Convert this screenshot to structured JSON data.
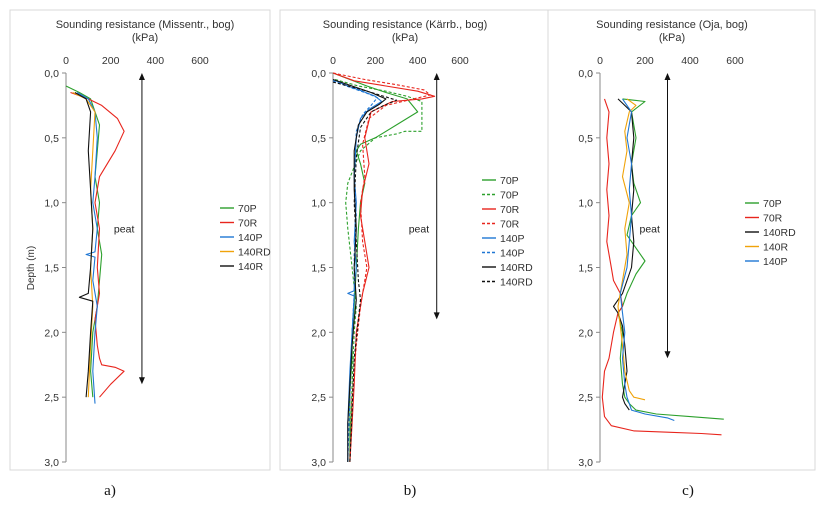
{
  "chart_data": [
    {
      "type": "line",
      "orientation": "vertical-profile",
      "panel_label": "a)",
      "title": "Sounding resistance (Missentr., bog)",
      "xunit": "(kPa)",
      "ylabel": "Depth (m)",
      "xlim": [
        0,
        600
      ],
      "ylim": [
        0,
        3.0
      ],
      "xticks": [
        "0",
        "200",
        "400",
        "600"
      ],
      "yticks": [
        "0,0",
        "0,5",
        "1,0",
        "1,5",
        "2,0",
        "2,5",
        "3,0"
      ],
      "annotation": {
        "text": "peat",
        "from_depth": 0.0,
        "to_depth": 2.4,
        "at_x": 340
      },
      "series": [
        {
          "name": "70P",
          "color": "#2ca02c",
          "dash": false,
          "x": [
            0,
            60,
            110,
            150,
            140,
            130,
            150,
            140,
            160,
            150,
            140,
            120,
            110,
            120
          ],
          "y": [
            0.1,
            0.15,
            0.2,
            0.4,
            0.6,
            0.8,
            1.0,
            1.2,
            1.4,
            1.6,
            1.8,
            2.0,
            2.3,
            2.5
          ]
        },
        {
          "name": "70R",
          "color": "#e8251d",
          "dash": false,
          "x": [
            20,
            100,
            160,
            230,
            260,
            220,
            150,
            130,
            150,
            140,
            150,
            130,
            140,
            150,
            160,
            220,
            260,
            200,
            150
          ],
          "y": [
            0.15,
            0.2,
            0.25,
            0.35,
            0.45,
            0.6,
            0.8,
            1.0,
            1.2,
            1.5,
            1.7,
            1.9,
            2.1,
            2.2,
            2.25,
            2.27,
            2.3,
            2.4,
            2.5
          ]
        },
        {
          "name": "140P",
          "color": "#1f77d4",
          "dash": false,
          "x": [
            50,
            100,
            130,
            140,
            130,
            120,
            140,
            130,
            90,
            130,
            120,
            140,
            130,
            120,
            130
          ],
          "y": [
            0.15,
            0.2,
            0.3,
            0.5,
            0.8,
            1.0,
            1.2,
            1.38,
            1.4,
            1.42,
            1.6,
            1.8,
            2.0,
            2.3,
            2.55
          ]
        },
        {
          "name": "140RD",
          "color": "#f0a30a",
          "dash": false,
          "x": [
            30,
            90,
            130,
            120,
            110,
            120,
            110,
            120,
            110,
            100
          ],
          "y": [
            0.15,
            0.2,
            0.3,
            0.6,
            0.9,
            1.2,
            1.5,
            1.8,
            2.1,
            2.5
          ]
        },
        {
          "name": "140R",
          "color": "#111111",
          "dash": false,
          "x": [
            40,
            90,
            110,
            100,
            110,
            120,
            110,
            100,
            60,
            120,
            110,
            100,
            90
          ],
          "y": [
            0.15,
            0.2,
            0.3,
            0.6,
            0.9,
            1.2,
            1.5,
            1.7,
            1.73,
            1.76,
            2.0,
            2.3,
            2.5
          ]
        }
      ]
    },
    {
      "type": "line",
      "orientation": "vertical-profile",
      "panel_label": "b)",
      "title": "Sounding resistance (Kärrb., bog)",
      "xunit": "(kPa)",
      "ylabel": "",
      "xlim": [
        0,
        600
      ],
      "ylim": [
        0,
        3.0
      ],
      "xticks": [
        "0",
        "200",
        "400",
        "600"
      ],
      "yticks": [
        "0,0",
        "0,5",
        "1,0",
        "1,5",
        "2,0",
        "2,5",
        "3,0"
      ],
      "annotation": {
        "text": "peat",
        "from_depth": 0.0,
        "to_depth": 1.9,
        "at_x": 490
      },
      "series": [
        {
          "name": "70P",
          "color": "#2ca02c",
          "dash": false,
          "x": [
            0,
            80,
            160,
            250,
            350,
            400,
            300,
            200,
            130,
            110,
            130,
            150,
            130,
            120,
            110,
            100,
            90,
            90,
            80,
            80,
            80
          ],
          "y": [
            0.0,
            0.05,
            0.1,
            0.15,
            0.2,
            0.3,
            0.4,
            0.5,
            0.55,
            0.6,
            0.7,
            0.85,
            1.0,
            1.2,
            1.5,
            1.8,
            2.0,
            2.2,
            2.45,
            2.7,
            3.0
          ]
        },
        {
          "name": "70P",
          "color": "#2ca02c",
          "dash": true,
          "x": [
            10,
            120,
            250,
            350,
            420,
            420,
            340,
            300,
            200,
            130,
            70,
            60,
            70,
            90,
            110,
            100,
            90,
            80
          ],
          "y": [
            0.05,
            0.1,
            0.14,
            0.18,
            0.22,
            0.45,
            0.45,
            0.47,
            0.5,
            0.6,
            0.85,
            1.0,
            1.2,
            1.5,
            1.8,
            2.0,
            2.4,
            3.0
          ]
        },
        {
          "name": "70R",
          "color": "#e8251d",
          "dash": false,
          "x": [
            0,
            100,
            250,
            400,
            480,
            420,
            280,
            180,
            150,
            170,
            140,
            130,
            150,
            170,
            140,
            110,
            100,
            90,
            80
          ],
          "y": [
            0.0,
            0.06,
            0.1,
            0.14,
            0.18,
            0.2,
            0.22,
            0.3,
            0.5,
            0.7,
            0.9,
            1.1,
            1.3,
            1.5,
            1.7,
            2.0,
            2.4,
            2.7,
            3.0
          ]
        },
        {
          "name": "70R",
          "color": "#e8251d",
          "dash": true,
          "x": [
            0,
            150,
            300,
            430,
            460,
            380,
            250,
            170,
            140,
            150,
            130,
            140,
            160,
            130,
            110,
            90,
            80
          ],
          "y": [
            0.0,
            0.05,
            0.09,
            0.13,
            0.17,
            0.2,
            0.25,
            0.35,
            0.55,
            0.8,
            1.0,
            1.3,
            1.5,
            1.8,
            2.1,
            2.5,
            3.0
          ]
        },
        {
          "name": "140P",
          "color": "#1f77d4",
          "dash": false,
          "x": [
            0,
            70,
            140,
            200,
            230,
            170,
            130,
            110,
            100,
            110,
            100,
            110,
            100,
            70,
            100,
            90,
            80,
            70,
            70
          ],
          "y": [
            0.05,
            0.1,
            0.14,
            0.18,
            0.22,
            0.28,
            0.35,
            0.5,
            0.8,
            1.0,
            1.3,
            1.5,
            1.68,
            1.7,
            1.72,
            2.0,
            2.3,
            2.7,
            3.0
          ]
        },
        {
          "name": "140P",
          "color": "#1f77d4",
          "dash": true,
          "x": [
            0,
            80,
            150,
            210,
            180,
            140,
            110,
            100,
            110,
            100,
            100,
            90,
            80,
            70
          ],
          "y": [
            0.06,
            0.11,
            0.15,
            0.19,
            0.25,
            0.32,
            0.45,
            0.8,
            1.1,
            1.4,
            1.7,
            2.0,
            2.5,
            3.0
          ]
        },
        {
          "name": "140RD",
          "color": "#111111",
          "dash": false,
          "x": [
            0,
            90,
            180,
            250,
            220,
            160,
            120,
            100,
            100,
            110,
            100,
            110,
            100,
            90,
            80,
            70,
            70
          ],
          "y": [
            0.05,
            0.1,
            0.15,
            0.2,
            0.24,
            0.3,
            0.4,
            0.6,
            0.9,
            1.2,
            1.5,
            1.75,
            1.9,
            2.1,
            2.4,
            2.7,
            3.0
          ]
        },
        {
          "name": "140RD",
          "color": "#111111",
          "dash": true,
          "x": [
            0,
            120,
            220,
            300,
            240,
            180,
            130,
            110,
            100,
            110,
            120,
            130,
            120,
            100,
            90,
            80
          ],
          "y": [
            0.07,
            0.12,
            0.17,
            0.21,
            0.25,
            0.3,
            0.42,
            0.65,
            1.0,
            1.3,
            1.6,
            1.75,
            1.9,
            2.2,
            2.6,
            3.0
          ]
        }
      ]
    },
    {
      "type": "line",
      "orientation": "vertical-profile",
      "panel_label": "c)",
      "title": "Sounding resistance (Oja, bog)",
      "xunit": "(kPa)",
      "ylabel": "",
      "xlim": [
        0,
        600
      ],
      "ylim": [
        0,
        3.0
      ],
      "xticks": [
        "0",
        "200",
        "400",
        "600"
      ],
      "yticks": [
        "0,0",
        "0,5",
        "1,0",
        "1,5",
        "2,0",
        "2,5",
        "3,0"
      ],
      "annotation": {
        "text": "peat",
        "from_depth": 0.0,
        "to_depth": 2.2,
        "at_x": 300
      },
      "series": [
        {
          "name": "70P",
          "color": "#2ca02c",
          "dash": false,
          "x": [
            100,
            200,
            140,
            160,
            140,
            150,
            180,
            140,
            120,
            160,
            200,
            160,
            120,
            100,
            80,
            100,
            90,
            100,
            110,
            130,
            160,
            250,
            400,
            550
          ],
          "y": [
            0.2,
            0.22,
            0.3,
            0.5,
            0.7,
            0.85,
            1.0,
            1.1,
            1.25,
            1.35,
            1.45,
            1.55,
            1.7,
            1.8,
            1.85,
            2.0,
            2.2,
            2.4,
            2.5,
            2.55,
            2.6,
            2.63,
            2.65,
            2.67
          ]
        },
        {
          "name": "70R",
          "color": "#e8251d",
          "dash": false,
          "x": [
            20,
            40,
            30,
            40,
            30,
            40,
            30,
            50,
            60,
            90,
            100,
            80,
            60,
            40,
            20,
            10,
            20,
            50,
            150,
            300,
            450,
            540
          ],
          "y": [
            0.2,
            0.3,
            0.5,
            0.7,
            0.9,
            1.1,
            1.3,
            1.5,
            1.6,
            1.7,
            1.8,
            1.85,
            2.0,
            2.2,
            2.3,
            2.5,
            2.65,
            2.72,
            2.76,
            2.77,
            2.78,
            2.79
          ]
        },
        {
          "name": "140RD",
          "color": "#111111",
          "dash": false,
          "x": [
            80,
            140,
            150,
            140,
            150,
            140,
            150,
            140,
            120,
            100,
            60,
            80,
            100,
            110,
            120,
            110,
            100,
            110,
            130
          ],
          "y": [
            0.2,
            0.3,
            0.5,
            0.7,
            0.9,
            1.1,
            1.3,
            1.5,
            1.6,
            1.7,
            1.8,
            1.85,
            1.95,
            2.1,
            2.3,
            2.4,
            2.5,
            2.55,
            2.6
          ]
        },
        {
          "name": "140R",
          "color": "#f0a30a",
          "dash": false,
          "x": [
            120,
            160,
            130,
            110,
            120,
            100,
            130,
            110,
            120,
            100,
            80,
            90,
            100,
            110,
            130,
            150,
            200
          ],
          "y": [
            0.2,
            0.25,
            0.3,
            0.45,
            0.6,
            0.8,
            1.0,
            1.2,
            1.4,
            1.6,
            1.8,
            1.95,
            2.1,
            2.3,
            2.45,
            2.5,
            2.52
          ]
        },
        {
          "name": "140P",
          "color": "#1f77d4",
          "dash": false,
          "x": [
            100,
            140,
            120,
            140,
            130,
            140,
            130,
            120,
            90,
            100,
            110,
            100,
            110,
            120,
            130,
            140,
            200,
            300,
            330
          ],
          "y": [
            0.2,
            0.3,
            0.5,
            0.7,
            0.9,
            1.1,
            1.3,
            1.5,
            1.7,
            1.85,
            2.0,
            2.2,
            2.4,
            2.5,
            2.55,
            2.6,
            2.63,
            2.66,
            2.68
          ]
        }
      ]
    }
  ]
}
